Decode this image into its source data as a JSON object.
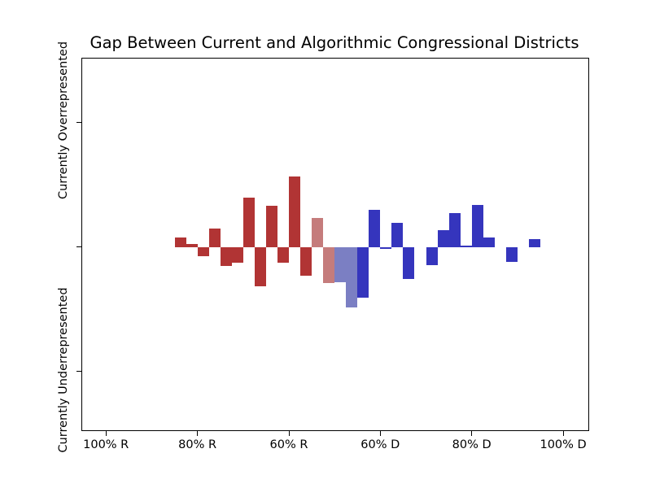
{
  "colors": {
    "dark_red": "#b13434",
    "light_red": "#c57c7c",
    "light_blue": "#7b7fc3",
    "dark_blue": "#3535bd",
    "axis": "#000000",
    "background": "#ffffff"
  },
  "chart_data": {
    "type": "bar",
    "title": "Gap Between Current and Algorithmic Congressional Districts",
    "xlabel": "",
    "ylabel": "",
    "x_axis": {
      "unit": "two-party vote share bin (% Democratic)",
      "xlim": [
        -5.2,
        105.5
      ],
      "ticks": [
        {
          "value": 0,
          "label": "100% R"
        },
        {
          "value": 20,
          "label": "80% R"
        },
        {
          "value": 40,
          "label": "60% R"
        },
        {
          "value": 60,
          "label": "60% D"
        },
        {
          "value": 80,
          "label": "80% D"
        },
        {
          "value": 100,
          "label": "100% D"
        }
      ]
    },
    "y_axis": {
      "ylim": [
        -1.47,
        1.51
      ],
      "ticks": [
        {
          "value": 1,
          "label": "Currently Overrepresented"
        },
        {
          "value": 0,
          "label": ""
        },
        {
          "value": -1,
          "label": "Currently Underrepresented"
        }
      ]
    },
    "bar_width": 2.5,
    "grid": false,
    "legend": null,
    "bars": [
      {
        "x": 16.25,
        "value": 0.078,
        "color": "dark_red"
      },
      {
        "x": 18.75,
        "value": 0.026,
        "color": "dark_red"
      },
      {
        "x": 21.25,
        "value": -0.076,
        "color": "dark_red"
      },
      {
        "x": 23.75,
        "value": 0.147,
        "color": "dark_red"
      },
      {
        "x": 26.25,
        "value": -0.152,
        "color": "dark_red"
      },
      {
        "x": 28.75,
        "value": -0.13,
        "color": "dark_red"
      },
      {
        "x": 31.25,
        "value": 0.397,
        "color": "dark_red"
      },
      {
        "x": 33.75,
        "value": -0.316,
        "color": "dark_red"
      },
      {
        "x": 36.25,
        "value": 0.33,
        "color": "dark_red"
      },
      {
        "x": 38.75,
        "value": -0.126,
        "color": "dark_red"
      },
      {
        "x": 41.25,
        "value": 0.564,
        "color": "dark_red"
      },
      {
        "x": 43.75,
        "value": -0.229,
        "color": "dark_red"
      },
      {
        "x": 46.25,
        "value": 0.235,
        "color": "light_red"
      },
      {
        "x": 48.75,
        "value": -0.289,
        "color": "light_red"
      },
      {
        "x": 51.25,
        "value": -0.285,
        "color": "light_blue"
      },
      {
        "x": 53.75,
        "value": -0.485,
        "color": "light_blue"
      },
      {
        "x": 56.25,
        "value": -0.405,
        "color": "dark_blue"
      },
      {
        "x": 58.75,
        "value": 0.3,
        "color": "dark_blue"
      },
      {
        "x": 61.25,
        "value": -0.013,
        "color": "dark_blue"
      },
      {
        "x": 63.75,
        "value": 0.195,
        "color": "dark_blue"
      },
      {
        "x": 66.25,
        "value": -0.26,
        "color": "dark_blue"
      },
      {
        "x": 68.75,
        "value": 0,
        "color": "dark_blue"
      },
      {
        "x": 71.25,
        "value": -0.148,
        "color": "dark_blue"
      },
      {
        "x": 73.75,
        "value": 0.134,
        "color": "dark_blue"
      },
      {
        "x": 76.25,
        "value": 0.271,
        "color": "dark_blue"
      },
      {
        "x": 78.75,
        "value": 0.013,
        "color": "dark_blue"
      },
      {
        "x": 81.25,
        "value": 0.336,
        "color": "dark_blue"
      },
      {
        "x": 83.75,
        "value": 0.076,
        "color": "dark_blue"
      },
      {
        "x": 86.25,
        "value": 0,
        "color": "dark_blue"
      },
      {
        "x": 88.75,
        "value": -0.12,
        "color": "dark_blue"
      },
      {
        "x": 91.25,
        "value": 0,
        "color": "dark_blue"
      },
      {
        "x": 93.75,
        "value": 0.065,
        "color": "dark_blue"
      }
    ]
  }
}
